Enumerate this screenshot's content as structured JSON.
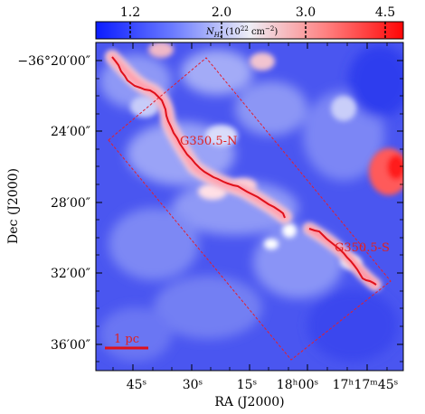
{
  "colorbar": {
    "label": "N_{H_2} (10^{22} cm^{-2})",
    "label_main": "N",
    "label_sub": "H",
    "label_subsub": "2",
    "label_units": " (10",
    "label_exp": "22",
    "label_cm": " cm",
    "label_cmexp": "−2",
    "label_close": ")",
    "ticks": [
      "1.2",
      "2.0",
      "3.0",
      "4.5"
    ],
    "colors": {
      "low": "#0b1cff",
      "mid": "#f2f2f7",
      "high": "#ff0a0a"
    }
  },
  "axes": {
    "xlabel": "RA (J2000)",
    "ylabel": "Dec (J2000)",
    "xticks": [
      "45ˢ",
      "30ˢ",
      "15ˢ",
      "18ʰ00ˢ",
      "17ʰ17ᵐ45ˢ"
    ],
    "yticks": [
      "−36°20′00″",
      "24′00″",
      "28′00″",
      "32′00″",
      "36′00″"
    ]
  },
  "annotations": {
    "north": "G350.5-N",
    "south": "G350.5-S",
    "scalebar": "1 pc"
  },
  "colors": {
    "filament": "#e0101a",
    "box": "#e02030"
  }
}
